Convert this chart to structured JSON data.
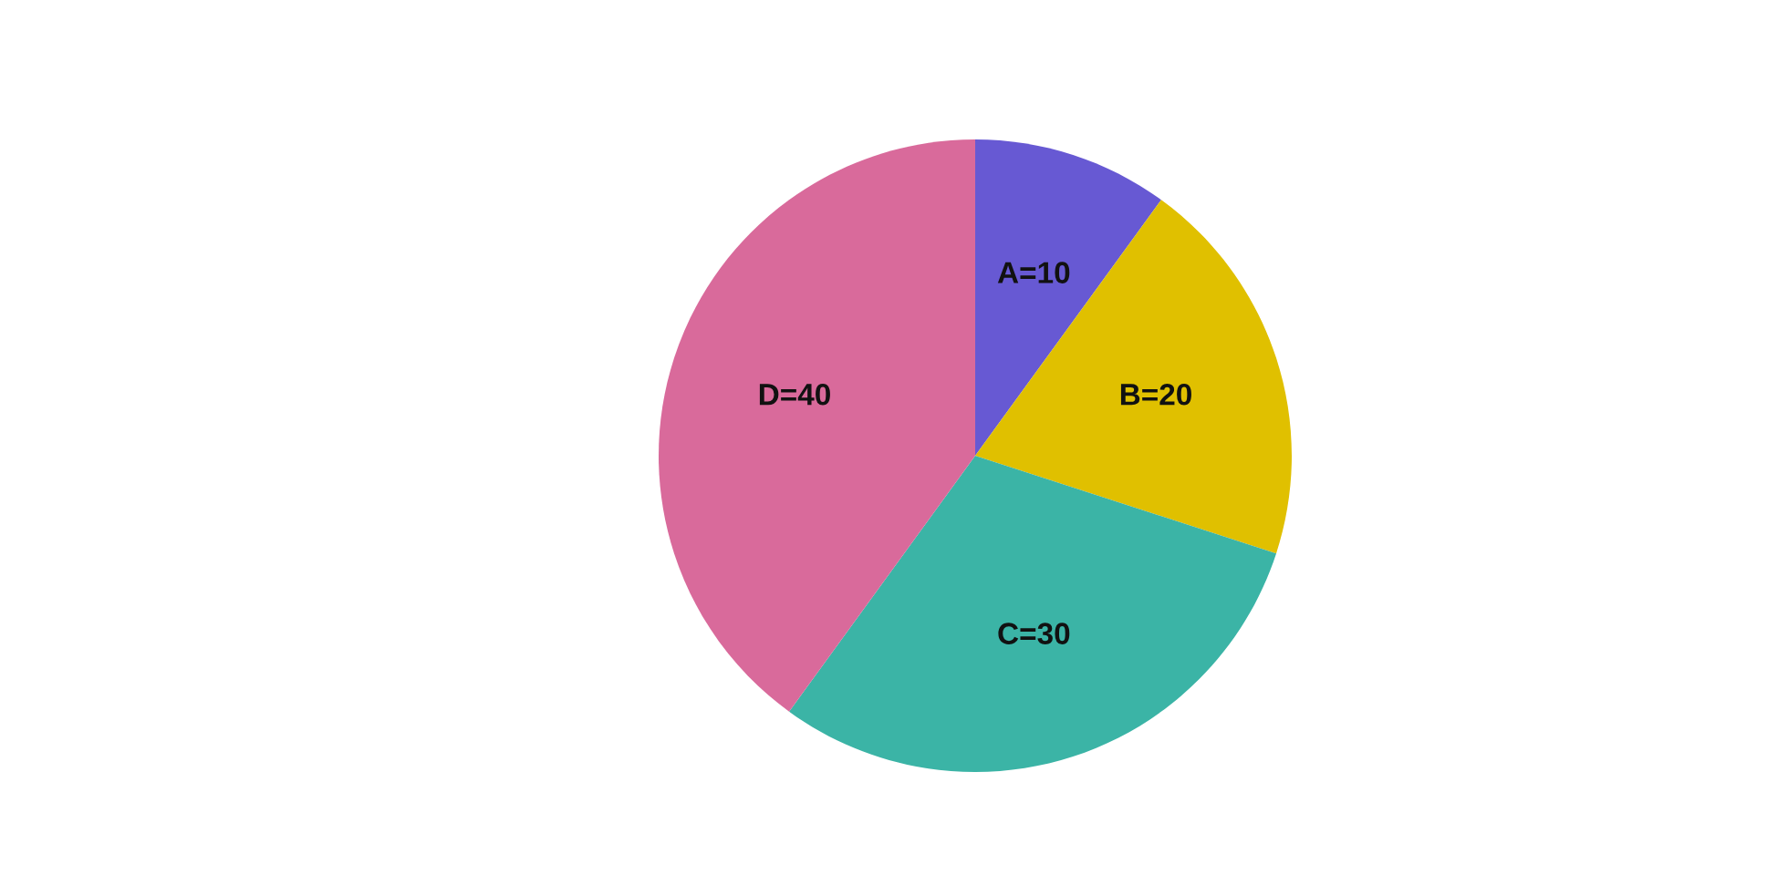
{
  "chart_data": {
    "type": "pie",
    "categories": [
      "A=10",
      "B=20",
      "C=30",
      "D=40"
    ],
    "values": [
      10,
      20,
      30,
      40
    ],
    "colors": [
      "#6759d3",
      "#e0c000",
      "#3bb4a6",
      "#d96a9b"
    ]
  }
}
